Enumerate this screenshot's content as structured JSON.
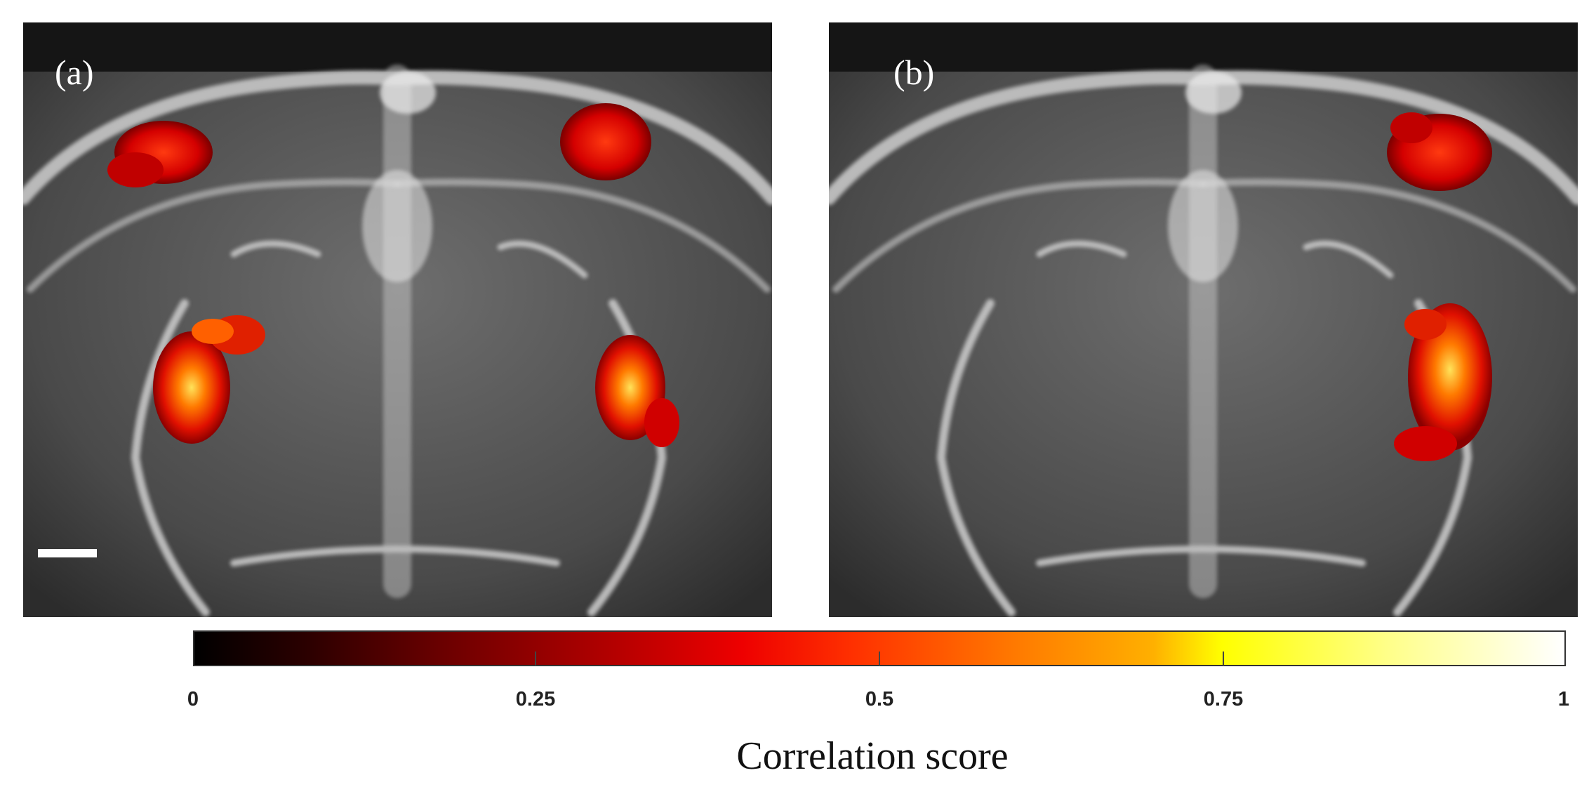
{
  "panels": [
    {
      "label": "(a)"
    },
    {
      "label": "(b)"
    }
  ],
  "colorbar": {
    "ticks": [
      "0",
      "0.25",
      "0.5",
      "0.75",
      "1"
    ],
    "title": "Correlation score",
    "colormap": "hot",
    "range": [
      0,
      1
    ]
  },
  "colors": {
    "background": "#ffffff",
    "activation_low": "#8b0000",
    "activation_mid": "#ff2a00",
    "activation_high": "#ffe040"
  }
}
